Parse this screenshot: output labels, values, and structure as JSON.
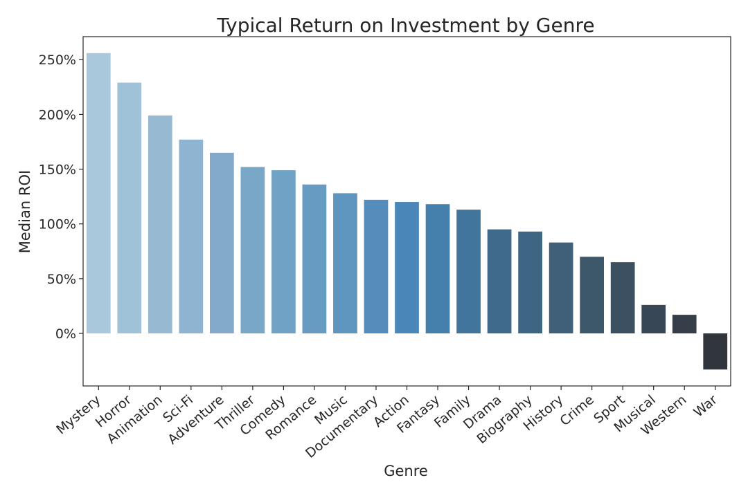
{
  "chart_data": {
    "type": "bar",
    "title": "Typical Return on Investment by Genre",
    "xlabel": "Genre",
    "ylabel": "Median ROI",
    "categories": [
      "Mystery",
      "Horror",
      "Animation",
      "Sci-Fi",
      "Adventure",
      "Thriller",
      "Comedy",
      "Romance",
      "Music",
      "Documentary",
      "Action",
      "Fantasy",
      "Family",
      "Drama",
      "Biography",
      "History",
      "Crime",
      "Sport",
      "Musical",
      "Western",
      "War"
    ],
    "values": [
      256,
      229,
      199,
      177,
      165,
      152,
      149,
      136,
      128,
      122,
      120,
      118,
      113,
      95,
      93,
      83,
      70,
      65,
      26,
      17,
      -33
    ],
    "colors": [
      "#a9c8dc",
      "#9fc2d9",
      "#97bad2",
      "#8fb4d1",
      "#84aacb",
      "#78a7c7",
      "#6fa2c5",
      "#679bc1",
      "#5e96c0",
      "#548dbb",
      "#4a87b8",
      "#4580ac",
      "#42759b",
      "#3f6a8c",
      "#3d6684",
      "#3f6078",
      "#3e586b",
      "#3c5062",
      "#384755",
      "#363f49",
      "#31363d"
    ],
    "yticks": [
      0,
      50,
      100,
      150,
      200,
      250
    ],
    "ytick_labels": [
      "0%",
      "50%",
      "100%",
      "150%",
      "200%",
      "250%"
    ],
    "ylim": [
      -48,
      271
    ],
    "grid": false
  }
}
